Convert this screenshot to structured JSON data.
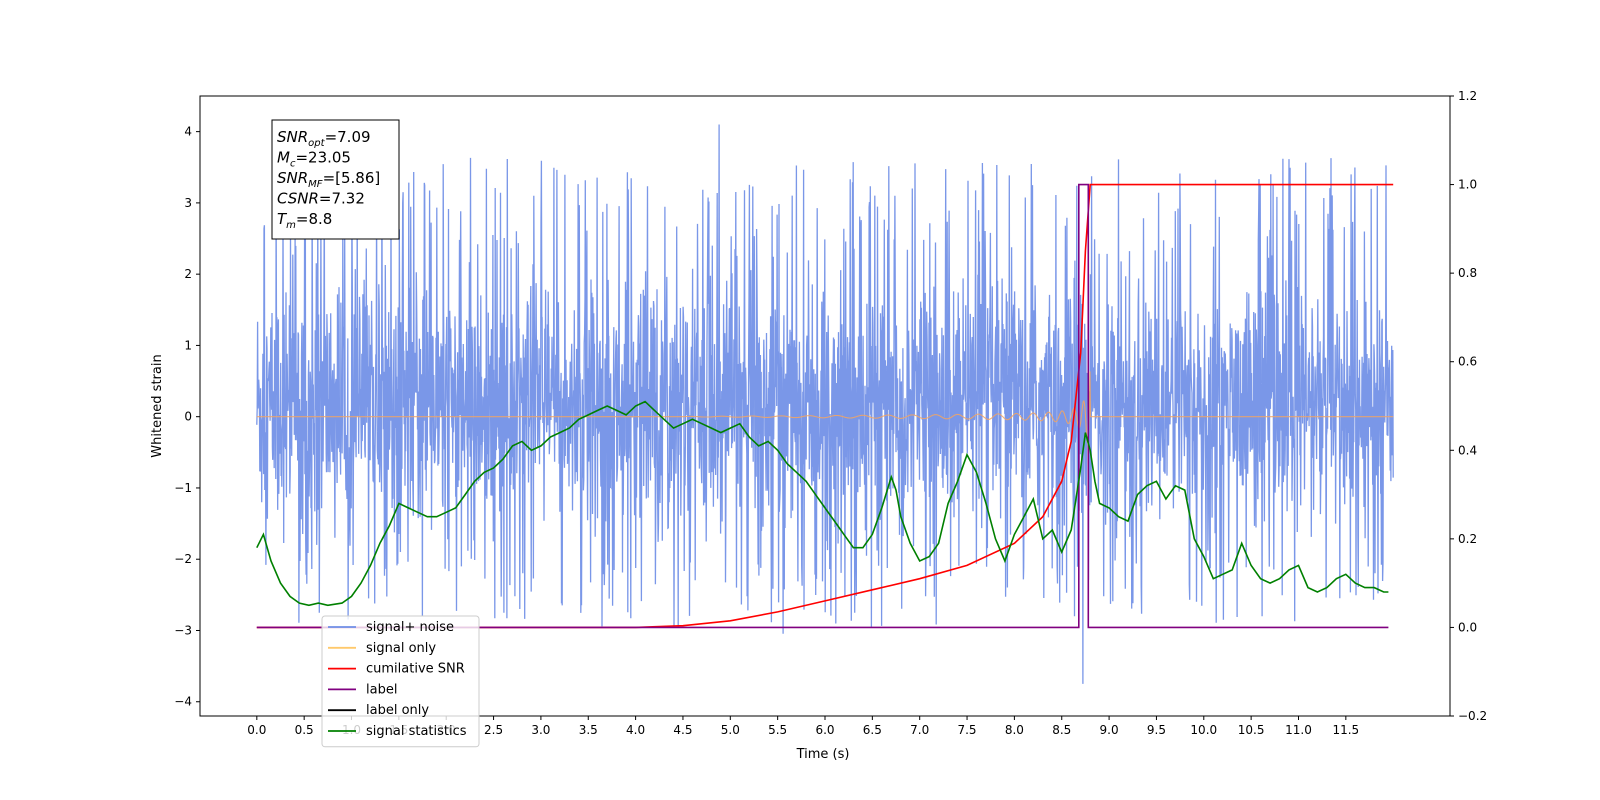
{
  "chart_data": {
    "type": "line",
    "xlabel": "Time (s)",
    "ylabel": "Whitened strain",
    "xlim": [
      -0.6,
      12.6
    ],
    "ylim": [
      -4.2,
      4.5
    ],
    "y2lim": [
      -0.2,
      1.2
    ],
    "x_ticks": [
      "0.0",
      "0.5",
      "1.0",
      "1.5",
      "2.0",
      "2.5",
      "3.0",
      "3.5",
      "4.0",
      "4.5",
      "5.0",
      "5.5",
      "6.0",
      "6.5",
      "7.0",
      "7.5",
      "8.0",
      "8.5",
      "9.0",
      "9.5",
      "10.0",
      "10.5",
      "11.0",
      "11.5"
    ],
    "y_ticks": [
      4,
      3,
      2,
      1,
      0,
      -1,
      -2,
      -3,
      -4
    ],
    "y_tick_labels": [
      "4",
      "3",
      "2",
      "1",
      "0",
      "−1",
      "−2",
      "−3",
      "−4"
    ],
    "y2_ticks": [
      1.2,
      1.0,
      0.8,
      0.6,
      0.4,
      0.2,
      0.0,
      -0.2
    ],
    "y2_tick_labels": [
      "1.2",
      "1.0",
      "0.8",
      "0.6",
      "0.4",
      "0.2",
      "0.0",
      "−0.2"
    ],
    "info_box": [
      {
        "base": "SNR",
        "sub": "opt",
        "value": "=7.09"
      },
      {
        "base": "M",
        "sub": "c",
        "value": "=23.05"
      },
      {
        "base": "SNR",
        "sub": "MF",
        "value": "=[5.86]"
      },
      {
        "base": "CSNR",
        "sub": "",
        "value": "=7.32"
      },
      {
        "base": "T",
        "sub": "m",
        "value": "=8.8"
      }
    ],
    "legend": {
      "placement": "lower-left",
      "entries": [
        {
          "label": "signal+ noise",
          "color": "#6f8ee6"
        },
        {
          "label": "signal only",
          "color": "#ffc96b"
        },
        {
          "label": "cumilative SNR",
          "color": "#ff0000"
        },
        {
          "label": "label",
          "color": "#800080"
        },
        {
          "label": "label only",
          "color": "#000000"
        },
        {
          "label": "signal statistics",
          "color": "#008000"
        }
      ]
    },
    "series": [
      {
        "name": "signal+ noise",
        "axis": "left",
        "color": "#6f8ee6",
        "x_range": [
          0.0,
          12.0
        ],
        "envelope_typical": [
          -2.0,
          2.3
        ],
        "peak_max": 4.1,
        "peak_min": -3.75
      },
      {
        "name": "signal only",
        "axis": "left",
        "color": "#f4a460",
        "x_range": [
          0.0,
          12.0
        ],
        "chirp_start": 4.5,
        "chirp_end": 8.8,
        "chirp_peak_amplitude": 0.75
      },
      {
        "name": "cumilative SNR",
        "axis": "right",
        "color": "#ff0000",
        "x": [
          0.0,
          1.0,
          2.0,
          3.0,
          4.0,
          4.5,
          5.0,
          5.5,
          6.0,
          6.5,
          7.0,
          7.5,
          8.0,
          8.3,
          8.5,
          8.6,
          8.7,
          8.75,
          8.8,
          12.0
        ],
        "values": [
          0.0,
          0.0,
          0.0,
          0.0,
          0.0,
          0.004,
          0.015,
          0.035,
          0.06,
          0.085,
          0.11,
          0.14,
          0.19,
          0.25,
          0.33,
          0.42,
          0.62,
          0.85,
          1.0,
          1.0
        ]
      },
      {
        "name": "label",
        "axis": "right",
        "color": "#800080",
        "x": [
          0.0,
          8.68,
          8.68,
          8.78,
          8.78,
          11.95
        ],
        "values": [
          0.0,
          0.0,
          1.0,
          1.0,
          0.0,
          0.0
        ]
      },
      {
        "name": "signal statistics",
        "axis": "right",
        "color": "#008000",
        "x": [
          0.0,
          0.07,
          0.15,
          0.25,
          0.35,
          0.45,
          0.55,
          0.65,
          0.75,
          0.9,
          1.0,
          1.1,
          1.2,
          1.3,
          1.4,
          1.5,
          1.6,
          1.7,
          1.8,
          1.9,
          2.0,
          2.1,
          2.2,
          2.3,
          2.4,
          2.5,
          2.6,
          2.7,
          2.8,
          2.9,
          3.0,
          3.1,
          3.2,
          3.3,
          3.4,
          3.5,
          3.6,
          3.7,
          3.8,
          3.9,
          4.0,
          4.1,
          4.2,
          4.3,
          4.4,
          4.5,
          4.6,
          4.7,
          4.8,
          4.9,
          5.0,
          5.1,
          5.2,
          5.3,
          5.4,
          5.5,
          5.6,
          5.7,
          5.8,
          5.9,
          6.0,
          6.1,
          6.2,
          6.3,
          6.4,
          6.5,
          6.6,
          6.7,
          6.75,
          6.8,
          6.9,
          7.0,
          7.1,
          7.2,
          7.3,
          7.4,
          7.5,
          7.6,
          7.7,
          7.8,
          7.9,
          8.0,
          8.1,
          8.2,
          8.3,
          8.4,
          8.5,
          8.6,
          8.7,
          8.75,
          8.8,
          8.85,
          8.9,
          9.0,
          9.1,
          9.2,
          9.3,
          9.4,
          9.5,
          9.6,
          9.7,
          9.8,
          9.9,
          10.0,
          10.1,
          10.2,
          10.3,
          10.4,
          10.5,
          10.6,
          10.7,
          10.8,
          10.9,
          11.0,
          11.1,
          11.2,
          11.3,
          11.4,
          11.5,
          11.6,
          11.7,
          11.8,
          11.9,
          11.95
        ],
        "values": [
          0.18,
          0.21,
          0.15,
          0.1,
          0.07,
          0.055,
          0.05,
          0.055,
          0.05,
          0.055,
          0.07,
          0.1,
          0.14,
          0.19,
          0.23,
          0.28,
          0.27,
          0.26,
          0.25,
          0.25,
          0.26,
          0.27,
          0.3,
          0.33,
          0.35,
          0.36,
          0.38,
          0.41,
          0.42,
          0.4,
          0.41,
          0.43,
          0.44,
          0.45,
          0.47,
          0.48,
          0.49,
          0.5,
          0.49,
          0.48,
          0.5,
          0.51,
          0.49,
          0.47,
          0.45,
          0.46,
          0.47,
          0.46,
          0.45,
          0.44,
          0.45,
          0.46,
          0.43,
          0.41,
          0.42,
          0.4,
          0.37,
          0.35,
          0.33,
          0.3,
          0.27,
          0.24,
          0.21,
          0.18,
          0.18,
          0.21,
          0.27,
          0.34,
          0.31,
          0.25,
          0.19,
          0.15,
          0.16,
          0.19,
          0.28,
          0.33,
          0.39,
          0.35,
          0.28,
          0.2,
          0.15,
          0.21,
          0.25,
          0.29,
          0.2,
          0.22,
          0.17,
          0.22,
          0.36,
          0.44,
          0.4,
          0.33,
          0.28,
          0.27,
          0.25,
          0.24,
          0.3,
          0.32,
          0.33,
          0.29,
          0.32,
          0.31,
          0.2,
          0.16,
          0.11,
          0.12,
          0.13,
          0.19,
          0.14,
          0.11,
          0.1,
          0.11,
          0.13,
          0.14,
          0.09,
          0.08,
          0.09,
          0.11,
          0.12,
          0.1,
          0.09,
          0.09,
          0.08,
          0.08
        ]
      }
    ]
  }
}
